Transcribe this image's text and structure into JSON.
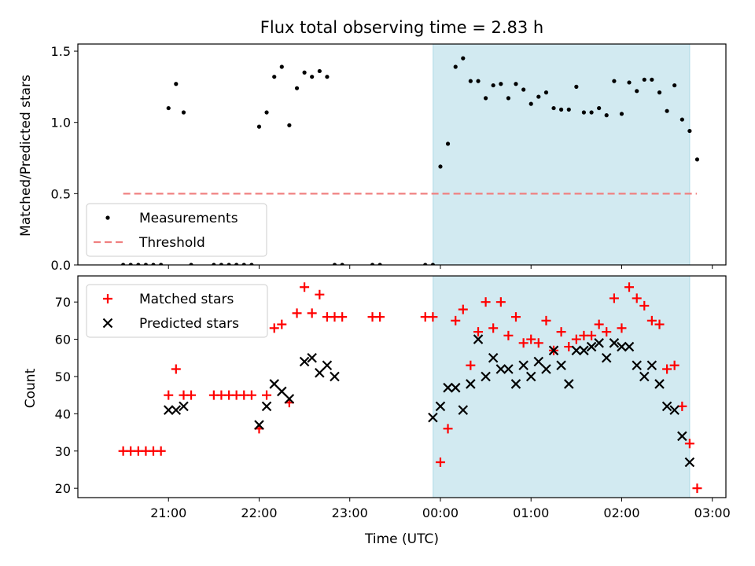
{
  "chart_data": {
    "title": "Flux total observing time = 2.83 h",
    "xlabel": "Time (UTC)",
    "xlim_hours": [
      20.0,
      27.15
    ],
    "xticks": [
      {
        "value": 21,
        "label": "21:00"
      },
      {
        "value": 22,
        "label": "22:00"
      },
      {
        "value": 23,
        "label": "23:00"
      },
      {
        "value": 24,
        "label": "00:00"
      },
      {
        "value": 25,
        "label": "01:00"
      },
      {
        "value": 26,
        "label": "02:00"
      },
      {
        "value": 27,
        "label": "03:00"
      }
    ],
    "shaded_span": {
      "start": 23.92,
      "end": 26.75,
      "color": "#add8e6"
    },
    "colors": {
      "measurements": "#000000",
      "threshold": "#f08080",
      "matched": "#ff0000",
      "predicted": "#000000",
      "shade": "#add8e6"
    },
    "panels": [
      {
        "type": "scatter",
        "ylabel": "Matched/Predicted stars",
        "ylim": [
          0,
          1.55
        ],
        "yticks": [
          {
            "value": 0.0,
            "label": "0.0"
          },
          {
            "value": 0.5,
            "label": "0.5"
          },
          {
            "value": 1.0,
            "label": "1.0"
          },
          {
            "value": 1.5,
            "label": "1.5"
          }
        ],
        "legend": {
          "location": "lower-left",
          "entries": [
            "Measurements",
            "Threshold"
          ]
        },
        "threshold": {
          "name": "Threshold",
          "y": 0.5,
          "x_range": [
            20.5,
            26.83
          ]
        },
        "series": [
          {
            "name": "Measurements",
            "marker": "dot",
            "x": [
              20.5,
              20.583,
              20.667,
              20.75,
              20.833,
              20.917,
              21.0,
              21.083,
              21.167,
              21.25,
              21.5,
              21.583,
              21.667,
              21.75,
              21.833,
              21.917,
              22.0,
              22.083,
              22.167,
              22.25,
              22.333,
              22.417,
              22.5,
              22.583,
              22.667,
              22.75,
              22.833,
              22.917,
              23.25,
              23.333,
              23.833,
              23.917,
              24.0,
              24.083,
              24.167,
              24.25,
              24.333,
              24.417,
              24.5,
              24.583,
              24.667,
              24.75,
              24.833,
              24.917,
              25.0,
              25.083,
              25.167,
              25.25,
              25.333,
              25.417,
              25.5,
              25.583,
              25.667,
              25.75,
              25.833,
              25.917,
              26.0,
              26.083,
              26.167,
              26.25,
              26.333,
              26.417,
              26.5,
              26.583,
              26.667,
              26.75,
              26.833
            ],
            "y": [
              0,
              0,
              0,
              0,
              0,
              0,
              1.1,
              1.27,
              1.07,
              0,
              0,
              0,
              0,
              0,
              0,
              0,
              0.97,
              1.07,
              1.32,
              1.39,
              0.98,
              1.24,
              1.35,
              1.32,
              1.36,
              1.32,
              0,
              0,
              0,
              0,
              0,
              0,
              0.69,
              0.85,
              1.39,
              1.45,
              1.29,
              1.29,
              1.17,
              1.26,
              1.27,
              1.17,
              1.27,
              1.23,
              1.13,
              1.18,
              1.21,
              1.1,
              1.09,
              1.09,
              1.25,
              1.07,
              1.07,
              1.1,
              1.05,
              1.29,
              1.06,
              1.28,
              1.22,
              1.3,
              1.3,
              1.21,
              1.08,
              1.26,
              1.02,
              0.94,
              0.74
            ]
          }
        ]
      },
      {
        "type": "scatter",
        "ylabel": "Count",
        "ylim": [
          17.5,
          77
        ],
        "yticks": [
          {
            "value": 20,
            "label": "20"
          },
          {
            "value": 30,
            "label": "30"
          },
          {
            "value": 40,
            "label": "40"
          },
          {
            "value": 50,
            "label": "50"
          },
          {
            "value": 60,
            "label": "60"
          },
          {
            "value": 70,
            "label": "70"
          }
        ],
        "legend": {
          "location": "upper-left",
          "entries": [
            "Matched stars",
            "Predicted stars"
          ]
        },
        "series": [
          {
            "name": "Matched stars",
            "marker": "plus",
            "x": [
              20.5,
              20.583,
              20.667,
              20.75,
              20.833,
              20.917,
              21.0,
              21.083,
              21.167,
              21.25,
              21.5,
              21.583,
              21.667,
              21.75,
              21.833,
              21.917,
              22.0,
              22.083,
              22.167,
              22.25,
              22.333,
              22.417,
              22.5,
              22.583,
              22.667,
              22.75,
              22.833,
              22.917,
              23.25,
              23.333,
              23.833,
              23.917,
              24.0,
              24.083,
              24.167,
              24.25,
              24.333,
              24.417,
              24.5,
              24.583,
              24.667,
              24.75,
              24.833,
              24.917,
              25.0,
              25.083,
              25.167,
              25.25,
              25.333,
              25.417,
              25.5,
              25.583,
              25.667,
              25.75,
              25.833,
              25.917,
              26.0,
              26.083,
              26.167,
              26.25,
              26.333,
              26.417,
              26.5,
              26.583,
              26.667,
              26.75,
              26.833
            ],
            "y": [
              30,
              30,
              30,
              30,
              30,
              30,
              45,
              52,
              45,
              45,
              45,
              45,
              45,
              45,
              45,
              45,
              36,
              45,
              63,
              64,
              43,
              67,
              74,
              67,
              72,
              66,
              66,
              66,
              66,
              66,
              66,
              66,
              27,
              36,
              65,
              68,
              53,
              62,
              70,
              63,
              70,
              61,
              66,
              59,
              60,
              59,
              65,
              57,
              62,
              58,
              60,
              61,
              61,
              64,
              62,
              71,
              63,
              74,
              71,
              69,
              65,
              64,
              52,
              53,
              42,
              32,
              20
            ]
          },
          {
            "name": "Predicted stars",
            "marker": "x",
            "x": [
              21.0,
              21.083,
              21.167,
              22.0,
              22.083,
              22.167,
              22.25,
              22.333,
              22.5,
              22.583,
              22.667,
              22.75,
              22.833,
              23.917,
              24.0,
              24.083,
              24.167,
              24.25,
              24.333,
              24.417,
              24.5,
              24.583,
              24.667,
              24.75,
              24.833,
              24.917,
              25.0,
              25.083,
              25.167,
              25.25,
              25.333,
              25.417,
              25.5,
              25.583,
              25.667,
              25.75,
              25.833,
              25.917,
              26.0,
              26.083,
              26.167,
              26.25,
              26.333,
              26.417,
              26.5,
              26.583,
              26.667,
              26.75
            ],
            "y": [
              41,
              41,
              42,
              37,
              42,
              48,
              46,
              44,
              54,
              55,
              51,
              53,
              50,
              39,
              42,
              47,
              47,
              41,
              48,
              60,
              50,
              55,
              52,
              52,
              48,
              53,
              50,
              54,
              52,
              57,
              53,
              48,
              57,
              57,
              58,
              59,
              55,
              59,
              58,
              58,
              53,
              50,
              53,
              48,
              42,
              41,
              34,
              27
            ]
          }
        ]
      }
    ]
  }
}
